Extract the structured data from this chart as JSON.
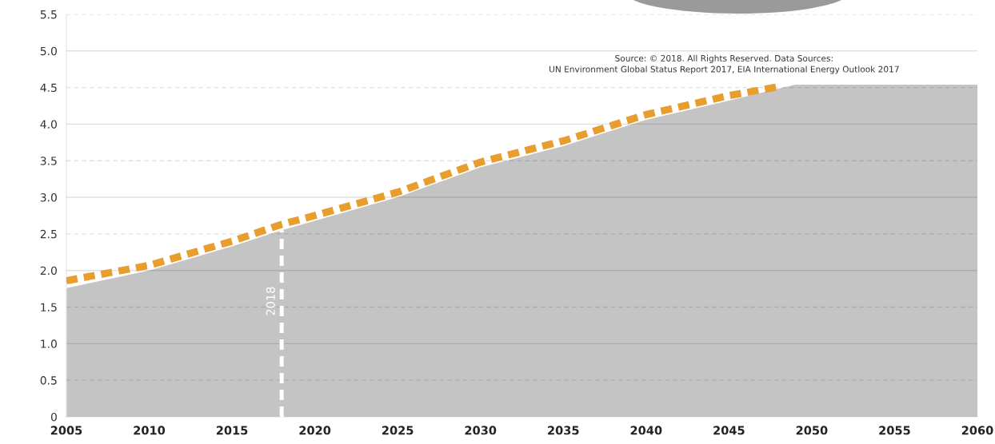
{
  "chart_data": {
    "type": "area",
    "series": [
      {
        "color": "#c4c4c4",
        "x": [
          2005,
          2010,
          2015,
          2018,
          2020,
          2025,
          2030,
          2035,
          2040,
          2045,
          2049,
          2060
        ],
        "values": [
          1.76,
          2.0,
          2.33,
          2.55,
          2.68,
          3.0,
          3.41,
          3.7,
          4.06,
          4.32,
          4.54,
          4.54
        ]
      },
      {
        "type": "line",
        "color": "#e89e2e",
        "x": [
          2005,
          2010,
          2015,
          2018,
          2020,
          2025,
          2030,
          2035,
          2040,
          2045,
          2048
        ],
        "values": [
          1.86,
          2.07,
          2.4,
          2.63,
          2.75,
          3.07,
          3.48,
          3.77,
          4.13,
          4.39,
          4.51
        ]
      }
    ],
    "line_style": "dashed",
    "xlim": [
      2005,
      2060
    ],
    "xticks": [
      2005,
      2010,
      2015,
      2020,
      2025,
      2030,
      2035,
      2040,
      2045,
      2050,
      2055,
      2060
    ],
    "ylim": [
      0,
      5.5
    ],
    "yticks": [
      0,
      0.5,
      {
        "value": 1,
        "label": "1.0"
      },
      1.5,
      {
        "value": 2,
        "label": "2.0"
      },
      2.5,
      {
        "value": 3,
        "label": "3.0"
      },
      3.5,
      {
        "value": 4,
        "label": "4.0"
      },
      4.5,
      {
        "value": 5,
        "label": "5.0"
      },
      5.5
    ],
    "grid": "y",
    "ref_lines": [
      {
        "axis": "x",
        "value": 2018,
        "label": "2018",
        "color": "#ffffff",
        "line_style": "dashed"
      }
    ],
    "annotations": [
      "Source: © 2018. All Rights Reserved. Data Sources:",
      "UN Environment Global Status Report 2017, EIA International Energy Outlook 2017"
    ]
  }
}
